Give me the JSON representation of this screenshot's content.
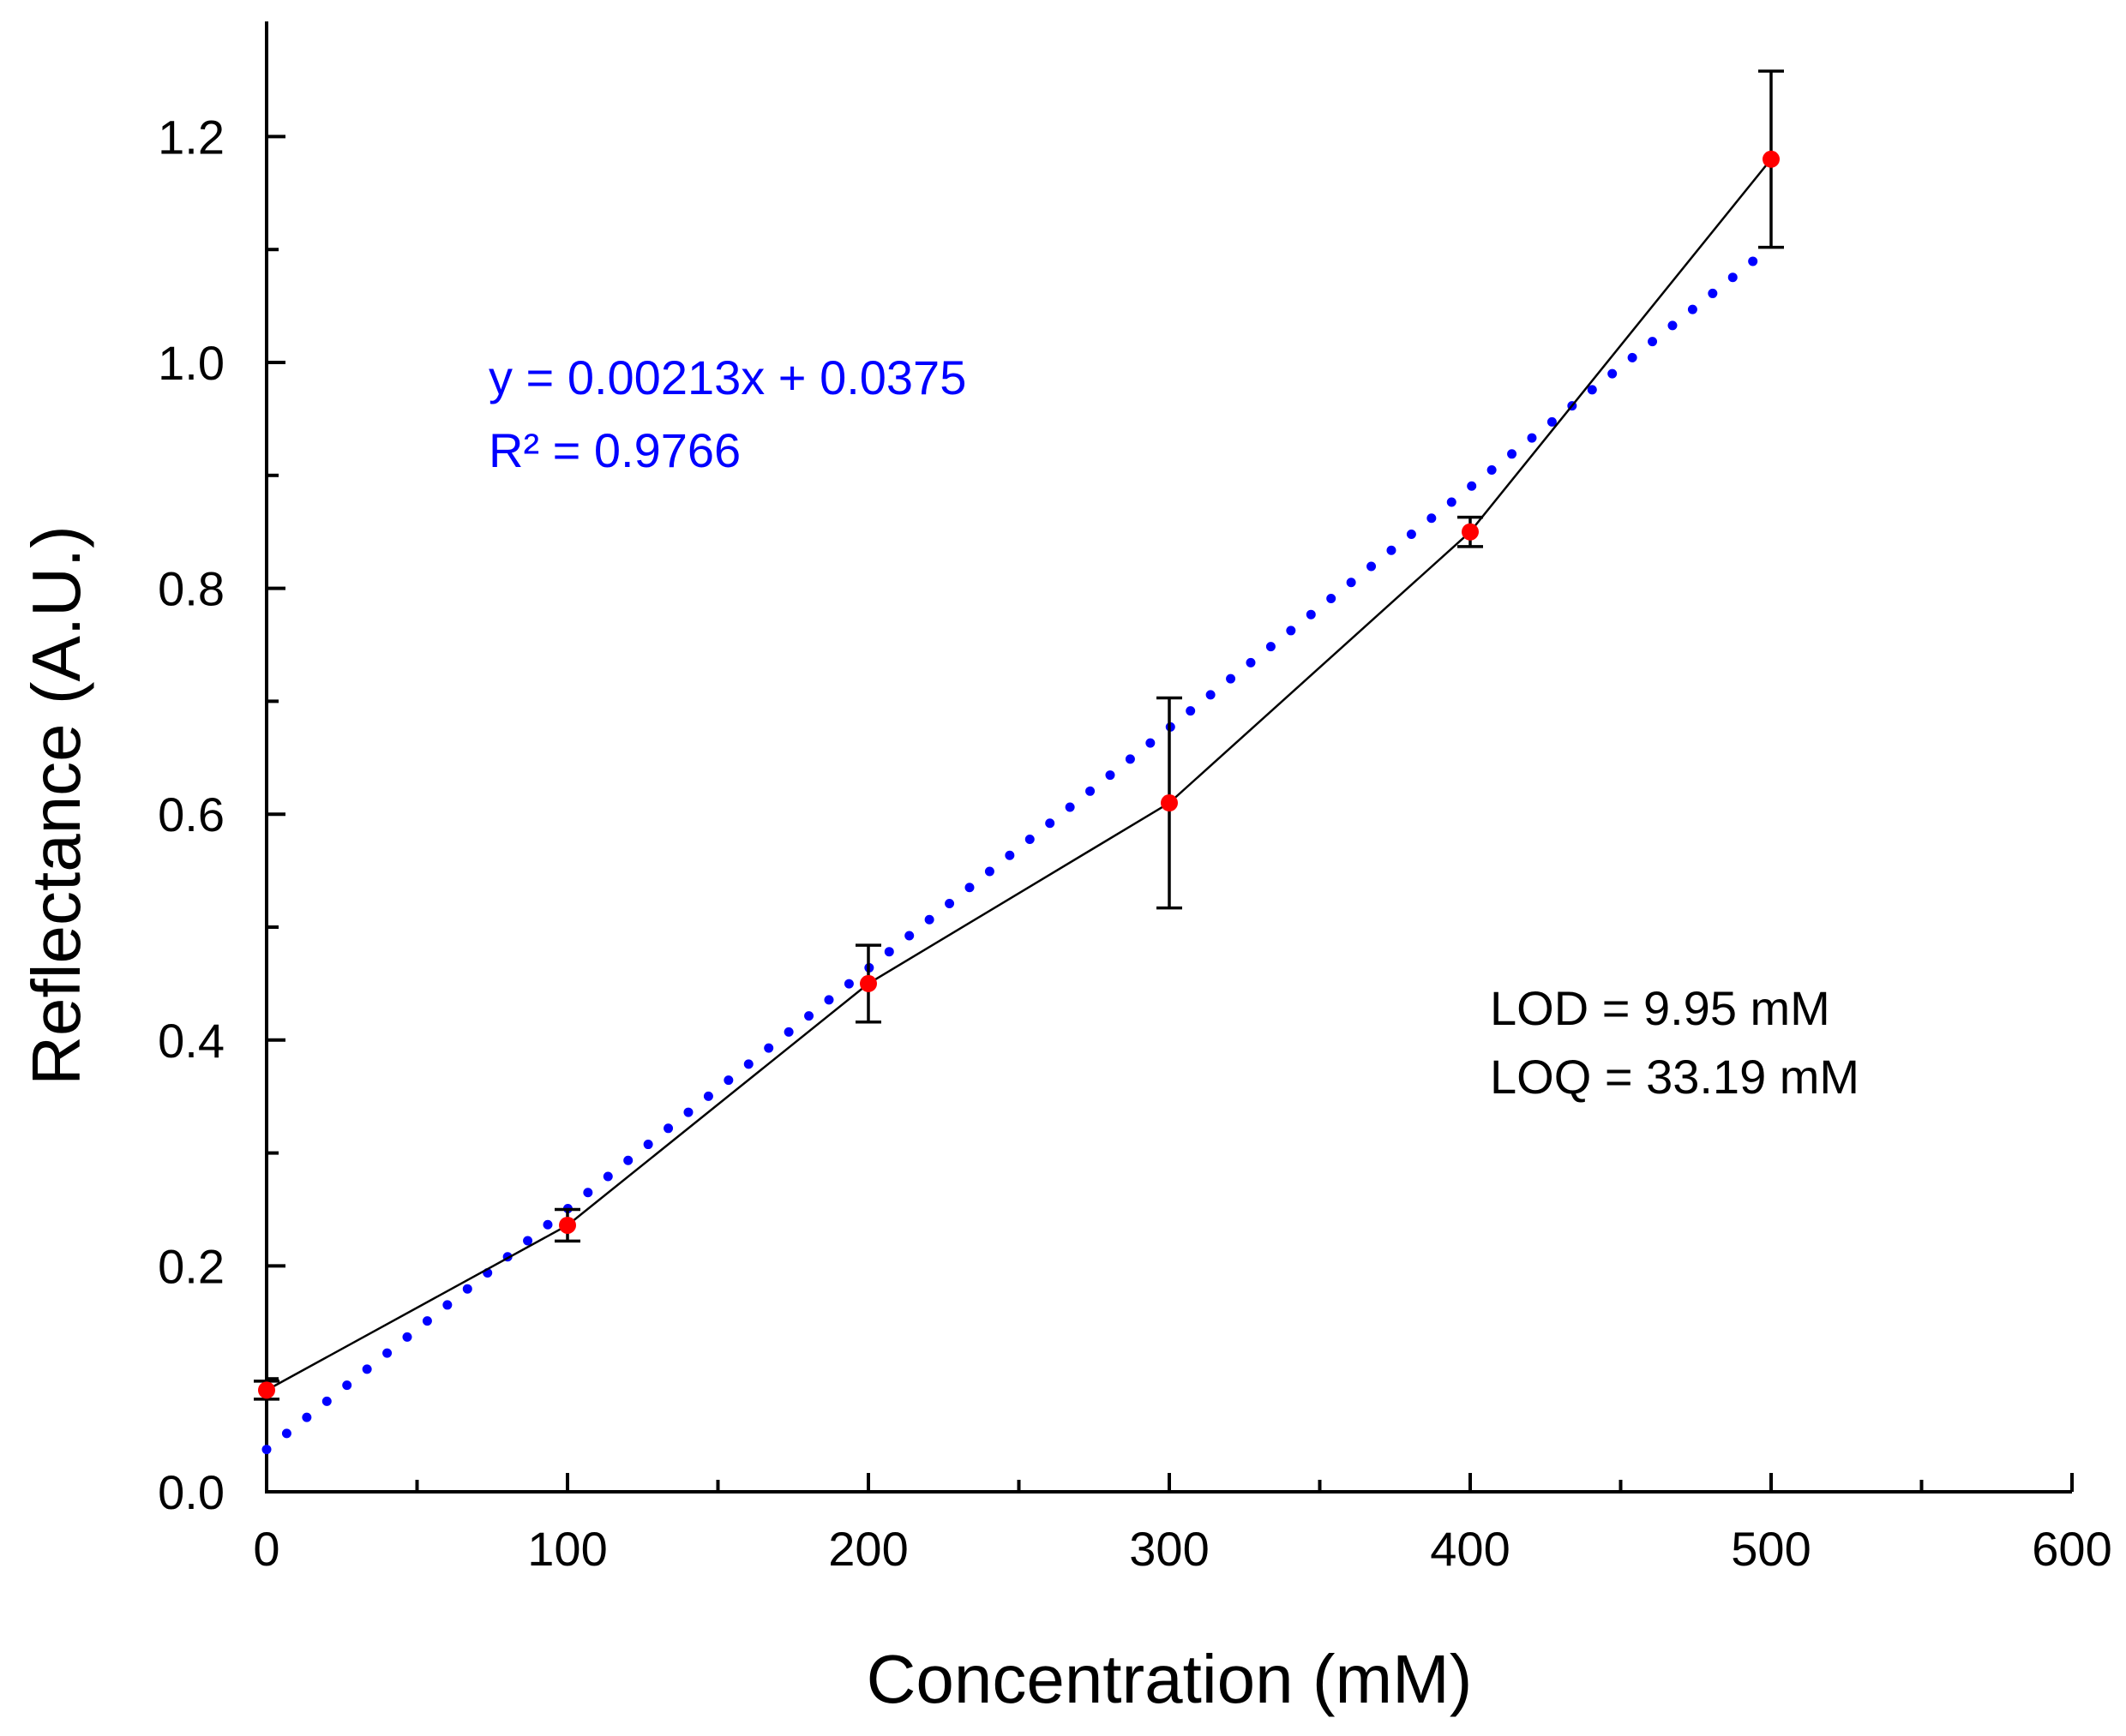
{
  "chart_data": {
    "type": "scatter",
    "xlabel": "Concentration (mM)",
    "ylabel": "Reflectance (A.U.)",
    "xlim": [
      0,
      600
    ],
    "ylim": [
      0,
      1.3
    ],
    "x_ticks": [
      0,
      100,
      200,
      300,
      400,
      500,
      600
    ],
    "x_tick_labels": [
      "0",
      "100",
      "200",
      "300",
      "400",
      "500",
      "600"
    ],
    "y_ticks": [
      0,
      0.2,
      0.4,
      0.6,
      0.8,
      1.0,
      1.2
    ],
    "y_tick_labels": [
      "0.0",
      "0.2",
      "0.4",
      "0.6",
      "0.8",
      "1.0",
      "1.2"
    ],
    "x_minor_step": 50,
    "y_minor_step": 0.1,
    "grid": false,
    "series": [
      {
        "name": "Reflectance",
        "x": [
          0,
          100,
          200,
          300,
          400,
          500
        ],
        "y": [
          0.09,
          0.236,
          0.45,
          0.61,
          0.85,
          1.18
        ],
        "error": [
          0.008,
          0.014,
          0.034,
          0.093,
          0.013,
          0.078
        ],
        "marker_color": "#ff0000",
        "line_color": "#000000"
      }
    ],
    "trendline": {
      "slope": 0.00213,
      "intercept": 0.0375,
      "x_range": [
        0,
        500
      ],
      "color": "#0000ff",
      "style": "dotted"
    },
    "annotations": [
      {
        "id": "equation",
        "lines": [
          "y = 0.00213x + 0.0375",
          "R² = 0.9766"
        ],
        "color": "#0000ff"
      },
      {
        "id": "limits",
        "lines": [
          "LOD = 9.95 mM",
          "LOQ = 33.19 mM"
        ],
        "color": "#000000"
      }
    ]
  }
}
